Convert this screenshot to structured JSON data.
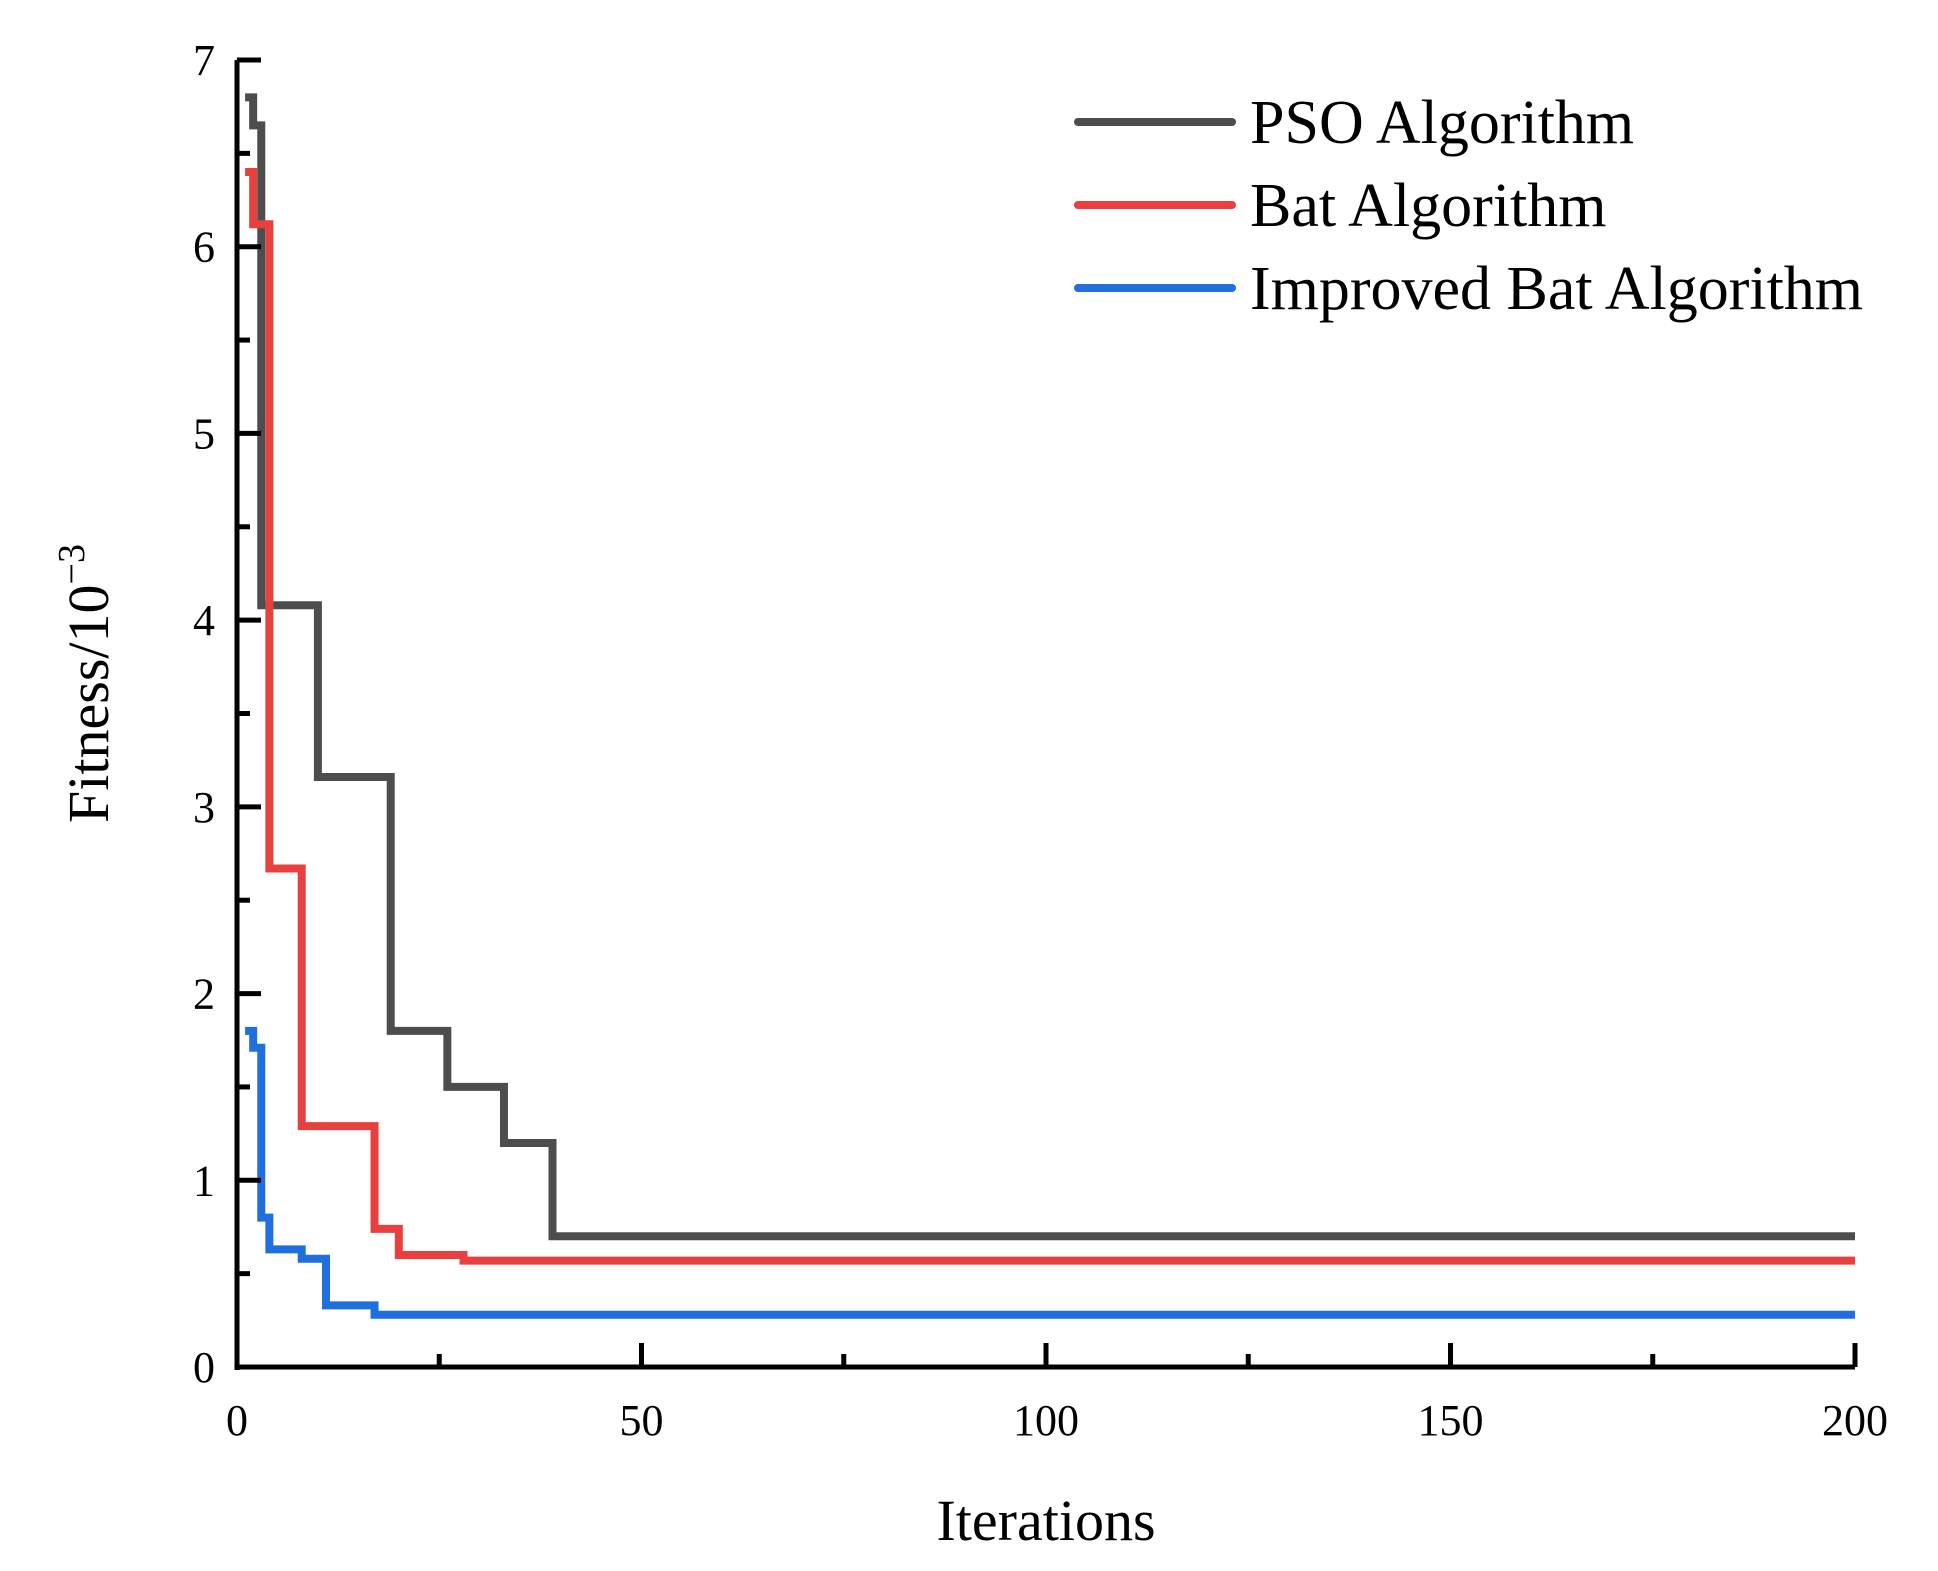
{
  "chart_data": {
    "type": "line",
    "title": "",
    "xlabel": "Iterations",
    "ylabel_main": "Fitness/10",
    "ylabel_exponent": "−3",
    "xlim": [
      0,
      200
    ],
    "ylim": [
      0,
      7
    ],
    "x_ticks": [
      0,
      50,
      100,
      150,
      200
    ],
    "x_tick_labels": [
      "0",
      "50",
      "100",
      "150",
      "200"
    ],
    "x_minor_ticks": [
      25,
      75,
      125,
      175
    ],
    "y_ticks": [
      0,
      1,
      2,
      3,
      4,
      5,
      6,
      7
    ],
    "y_tick_labels": [
      "0",
      "1",
      "2",
      "3",
      "4",
      "5",
      "6",
      "7"
    ],
    "y_minor_ticks": [
      0.5,
      1.5,
      2.5,
      3.5,
      4.5,
      5.5,
      6.5
    ],
    "grid": false,
    "legend_position": "top-right",
    "step_mode": "post",
    "series": [
      {
        "name": "PSO Algorithm",
        "color": "#4d4d4d",
        "x": [
          1,
          2,
          3,
          10,
          19,
          26,
          33,
          39,
          200
        ],
        "y": [
          6.8,
          6.65,
          4.08,
          3.16,
          1.8,
          1.5,
          1.2,
          0.7,
          0.7
        ]
      },
      {
        "name": "Bat Algorithm",
        "color": "#e8403f",
        "x": [
          1,
          2,
          4,
          8,
          17,
          20,
          28,
          200
        ],
        "y": [
          6.4,
          6.12,
          2.67,
          1.29,
          0.74,
          0.6,
          0.57,
          0.57
        ]
      },
      {
        "name": "Improved Bat Algorithm",
        "color": "#1f6fdc",
        "x": [
          1,
          2,
          3,
          4,
          8,
          11,
          17,
          200
        ],
        "y": [
          1.8,
          1.71,
          0.8,
          0.63,
          0.58,
          0.33,
          0.28,
          0.28
        ]
      }
    ]
  }
}
